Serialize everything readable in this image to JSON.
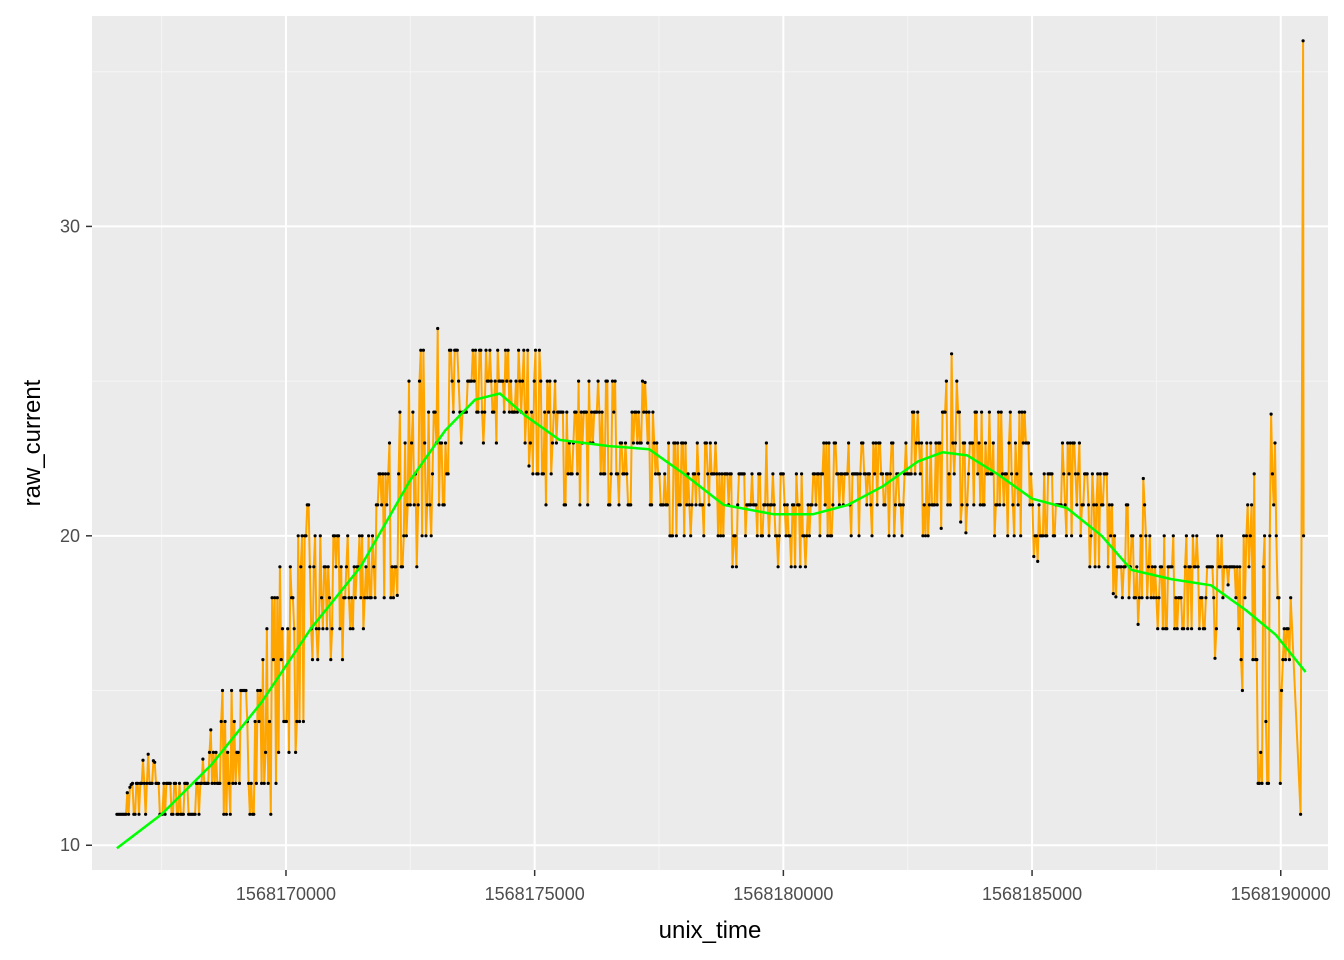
{
  "chart_data": {
    "type": "line",
    "title": "",
    "xlabel": "unix_time",
    "ylabel": "raw_current",
    "xlim": [
      1568166100,
      1568190950
    ],
    "ylim": [
      9.2,
      36.8
    ],
    "x_ticks": [
      1568170000,
      1568175000,
      1568180000,
      1568185000,
      1568190000
    ],
    "x_tick_labels": [
      "1568170000",
      "1568175000",
      "1568180000",
      "1568185000",
      "1568190000"
    ],
    "y_ticks": [
      10,
      20,
      30
    ],
    "y_tick_labels": [
      "10",
      "20",
      "30"
    ],
    "grid": true,
    "legend": "none",
    "colors": {
      "panel_background": "#ebebeb",
      "grid_major": "#ffffff",
      "grid_minor": "#f5f5f5",
      "raw_line": "#ffa500",
      "raw_points": "#000000",
      "smooth_line": "#00ff00"
    },
    "series": [
      {
        "kind": "raw_line_points",
        "note_envelope": "dense oscillation between low and high band",
        "x": [
          1568166600,
          1568167200,
          1568167700,
          1568168200,
          1568168700,
          1568169200,
          1568169700,
          1568170200,
          1568170700,
          1568171200,
          1568171700,
          1568172200,
          1568172700,
          1568173200,
          1568173700,
          1568174200,
          1568174700,
          1568175200,
          1568175700,
          1568176200,
          1568176700,
          1568177200,
          1568177700,
          1568178200,
          1568178700,
          1568179200,
          1568179700,
          1568180200,
          1568180700,
          1568181200,
          1568181700,
          1568182200,
          1568182700,
          1568183100,
          1568183400,
          1568183700,
          1568184200,
          1568184700,
          1568185200,
          1568185700,
          1568186200,
          1568186700,
          1568187200,
          1568187700,
          1568188200,
          1568188700,
          1568189000,
          1568189400,
          1568189800,
          1568190200,
          1568190400
        ],
        "low": [
          11,
          11,
          11,
          11,
          11,
          11,
          11,
          13,
          15,
          16,
          17,
          18,
          19,
          21,
          22,
          23,
          23,
          21,
          21,
          21,
          21,
          21,
          20,
          20,
          19,
          19,
          19,
          19,
          19,
          20,
          20,
          20,
          20,
          20,
          21,
          20,
          20,
          20,
          19,
          19,
          19,
          18,
          17,
          17,
          17,
          16,
          19,
          11,
          12,
          11,
          11
        ],
        "high": [
          11,
          13,
          12,
          12,
          15,
          15,
          18,
          21,
          21,
          20,
          21,
          24,
          26,
          27,
          26,
          26,
          26,
          26,
          25,
          25,
          25,
          25,
          24,
          23,
          23,
          23,
          23,
          23,
          23,
          23,
          23,
          24,
          24,
          24,
          26,
          24,
          24,
          25,
          23,
          23,
          23,
          22,
          22,
          20,
          20,
          20,
          20,
          23,
          24,
          20,
          36
        ]
      },
      {
        "kind": "smooth",
        "x": [
          1568166600,
          1568167500,
          1568168500,
          1568169500,
          1568170500,
          1568171500,
          1568172500,
          1568173200,
          1568173800,
          1568174300,
          1568174800,
          1568175500,
          1568176500,
          1568177300,
          1568178000,
          1568178800,
          1568179800,
          1568180600,
          1568181300,
          1568182000,
          1568182700,
          1568183200,
          1568183700,
          1568184300,
          1568185000,
          1568185700,
          1568186400,
          1568187000,
          1568187800,
          1568188600,
          1568189300,
          1568189900,
          1568190500
        ],
        "y": [
          9.9,
          11.0,
          12.6,
          14.6,
          17.0,
          19.0,
          21.8,
          23.4,
          24.4,
          24.6,
          23.9,
          23.1,
          22.9,
          22.8,
          22.0,
          21.0,
          20.7,
          20.7,
          21.0,
          21.6,
          22.4,
          22.7,
          22.6,
          22.0,
          21.2,
          20.9,
          20.0,
          18.9,
          18.6,
          18.4,
          17.6,
          16.8,
          15.6
        ]
      }
    ]
  }
}
